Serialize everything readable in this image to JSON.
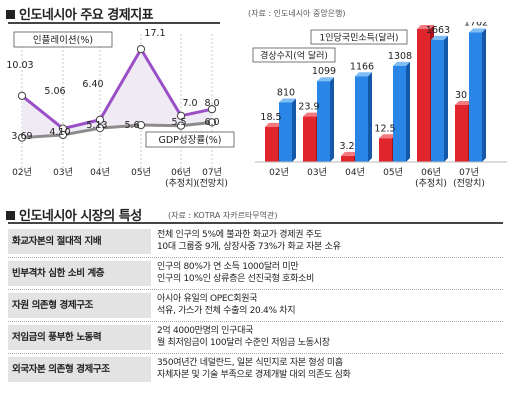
{
  "section1": {
    "title": "인도네시아 주요 경제지표",
    "source": "(자료 : 인도네시아 중앙은행)"
  },
  "section2": {
    "title": "인도네시아 시장의 특성",
    "source": "(자료 : KOTRA 자카르타무역관)"
  },
  "chart_data": [
    {
      "type": "line",
      "categories": [
        "02년",
        "03년",
        "04년",
        "05년",
        "06년\n(추정치)",
        "07년\n(전망치)"
      ],
      "series": [
        {
          "name": "인플레이션(%)",
          "values": [
            10.03,
            5.06,
            6.4,
            17.1,
            7.0,
            8.0
          ],
          "labels": [
            "10.03",
            "5.06",
            "6.40",
            "17.1",
            "7.0",
            "8.0"
          ],
          "color": "#9a4fc6"
        },
        {
          "name": "GDP성장률(%)",
          "values": [
            3.69,
            4.1,
            5.13,
            5.6,
            5.5,
            6.0
          ],
          "labels": [
            "3.69",
            "4.10",
            "5.13",
            "5.6",
            "5.5",
            "6.0"
          ],
          "color": "#8c8c8c"
        }
      ],
      "ylim": [
        0,
        19
      ]
    },
    {
      "type": "bar",
      "categories": [
        "02년",
        "03년",
        "04년",
        "05년",
        "06년\n(추정치)",
        "07년\n(전망치)"
      ],
      "series": [
        {
          "name": "경상수지(억 달러)",
          "values": [
            18.5,
            23.9,
            3.2,
            12.5,
            70,
            30
          ],
          "labels": [
            "18.5",
            "23.9",
            "3.2",
            "12.5",
            "70",
            "30"
          ],
          "color": "#e0252d"
        },
        {
          "name": "1인당국민소득(달러)",
          "values": [
            810,
            1099,
            1166,
            1308,
            1663,
            1762
          ],
          "labels": [
            "810",
            "1099",
            "1166",
            "1308",
            "1663",
            "1762"
          ],
          "color": "#2a86e6"
        }
      ]
    }
  ],
  "table": {
    "rows": [
      {
        "label": "화교자본의 절대적 지배",
        "lines": [
          "전체 인구의 5%에 불과한 화교가 경제권 주도",
          "10대 그룹중 9개, 상장사중 73%가 화교 자본 소유"
        ]
      },
      {
        "label": "빈부격차 심한 소비 계층",
        "lines": [
          "인구의 80%가 연 소득 1000달러 미만",
          "인구의 10%인 상류층은 선진국형 호화소비"
        ]
      },
      {
        "label": "자원 의존형 경제구조",
        "lines": [
          "아시아 유일의 OPEC회원국",
          "석유, 가스가 전체 수출의 20.4% 차지"
        ]
      },
      {
        "label": "저임금의 풍부한 노동력",
        "lines": [
          "2억 4000만명의 인구대국",
          "월 최저임금이 100달러 수준인 저임금 노동시장"
        ]
      },
      {
        "label": "외국자본 의존형 경제구조",
        "lines": [
          "350여년간 네덜란드, 일본 식민지로 자본 형성 미흡",
          "자체자본 및 기술 부족으로 경제개발 대외 의존도 심화"
        ]
      }
    ]
  }
}
